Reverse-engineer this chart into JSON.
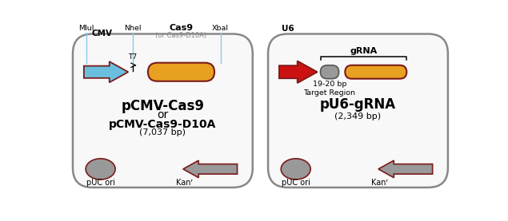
{
  "bg_color": "#ffffff",
  "box_line_color": "#888888",
  "box_fill_color": "#f8f8f8",
  "dark_red": "#7b1a1a",
  "blue_arrow_color": "#6bbfde",
  "red_arrow_color": "#cc1111",
  "orange_fill": "#e8a020",
  "gray_fill": "#999999",
  "gray_stroke": "#555555",
  "light_blue_line": "#88ccee",
  "left_title1": "pCMV-Cas9",
  "left_title2": "or",
  "left_title3": "pCMV-Cas9-D10A",
  "left_subtitle": "(7,037 bp)",
  "right_title": "pU6-gRNA",
  "right_subtitle": "(2,349 bp)",
  "left_cas9_sub": "(or Cas9-D10A)",
  "right_label_u6": "U6",
  "right_label_grna": "gRNA",
  "right_label_target": "19-20 bp\nTarget Region",
  "bottom_left_label": "pUC ori",
  "bottom_left_kanr": "Kanʳ",
  "bottom_right_label": "pUC ori",
  "bottom_right_kanr": "Kanʳ",
  "t7_label": "T7",
  "mlui": "MluI",
  "nhei": "NheI",
  "xbai": "XbaI",
  "cmv": "CMV",
  "cas9": "Cas9"
}
